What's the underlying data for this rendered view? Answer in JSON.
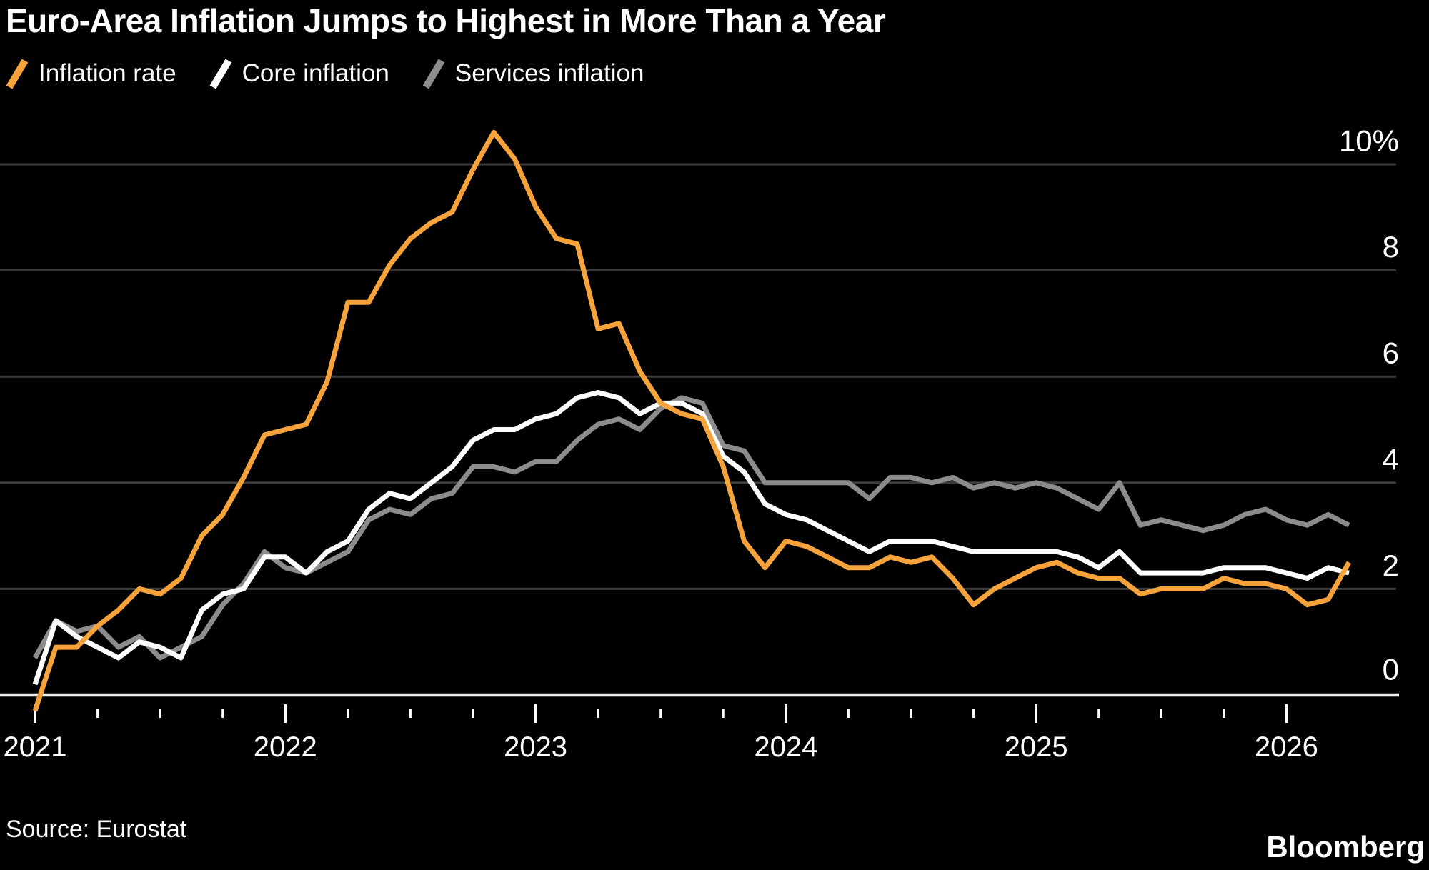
{
  "title": "Euro-Area Inflation Jumps to Highest in More Than a Year",
  "legend": [
    {
      "label": "Inflation rate",
      "color": "#f6a33c"
    },
    {
      "label": "Core inflation",
      "color": "#ffffff"
    },
    {
      "label": "Services inflation",
      "color": "#8c8c8c"
    }
  ],
  "source": "Source: Eurostat",
  "brand": "Bloomberg",
  "chart_data": {
    "type": "line",
    "title": "Euro-Area Inflation Jumps to Highest in More Than a Year",
    "x": [
      "2020-12",
      "2021-01",
      "2021-02",
      "2021-03",
      "2021-04",
      "2021-05",
      "2021-06",
      "2021-07",
      "2021-08",
      "2021-09",
      "2021-10",
      "2021-11",
      "2021-12",
      "2022-01",
      "2022-02",
      "2022-03",
      "2022-04",
      "2022-05",
      "2022-06",
      "2022-07",
      "2022-08",
      "2022-09",
      "2022-10",
      "2022-11",
      "2022-12",
      "2023-01",
      "2023-02",
      "2023-03",
      "2023-04",
      "2023-05",
      "2023-06",
      "2023-07",
      "2023-08",
      "2023-09",
      "2023-10",
      "2023-11",
      "2023-12",
      "2024-01",
      "2024-02",
      "2024-03",
      "2024-04",
      "2024-05",
      "2024-06",
      "2024-07",
      "2024-08",
      "2024-09",
      "2024-10",
      "2024-11",
      "2024-12",
      "2025-01",
      "2025-02",
      "2025-03",
      "2025-04",
      "2025-05",
      "2025-06",
      "2025-07",
      "2025-08",
      "2025-09",
      "2025-10",
      "2025-11",
      "2025-12",
      "2026-01",
      "2026-02",
      "2026-03"
    ],
    "series": [
      {
        "name": "Inflation rate",
        "color": "#f6a33c",
        "values": [
          -0.3,
          0.9,
          0.9,
          1.3,
          1.6,
          2.0,
          1.9,
          2.2,
          3.0,
          3.4,
          4.1,
          4.9,
          5.0,
          5.1,
          5.9,
          7.4,
          7.4,
          8.1,
          8.6,
          8.9,
          9.1,
          9.9,
          10.6,
          10.1,
          9.2,
          8.6,
          8.5,
          6.9,
          7.0,
          6.1,
          5.5,
          5.3,
          5.2,
          4.3,
          2.9,
          2.4,
          2.9,
          2.8,
          2.6,
          2.4,
          2.4,
          2.6,
          2.5,
          2.6,
          2.2,
          1.7,
          2.0,
          2.2,
          2.4,
          2.5,
          2.3,
          2.2,
          2.2,
          1.9,
          2.0,
          2.0,
          2.0,
          2.2,
          2.1,
          2.1,
          2.0,
          1.7,
          1.8,
          2.5
        ]
      },
      {
        "name": "Core inflation",
        "color": "#ffffff",
        "values": [
          0.2,
          1.4,
          1.1,
          0.9,
          0.7,
          1.0,
          0.9,
          0.7,
          1.6,
          1.9,
          2.0,
          2.6,
          2.6,
          2.3,
          2.7,
          2.9,
          3.5,
          3.8,
          3.7,
          4.0,
          4.3,
          4.8,
          5.0,
          5.0,
          5.2,
          5.3,
          5.6,
          5.7,
          5.6,
          5.3,
          5.5,
          5.5,
          5.3,
          4.5,
          4.2,
          3.6,
          3.4,
          3.3,
          3.1,
          2.9,
          2.7,
          2.9,
          2.9,
          2.9,
          2.8,
          2.7,
          2.7,
          2.7,
          2.7,
          2.7,
          2.6,
          2.4,
          2.7,
          2.3,
          2.3,
          2.3,
          2.3,
          2.4,
          2.4,
          2.4,
          2.3,
          2.2,
          2.4,
          2.3
        ]
      },
      {
        "name": "Services inflation",
        "color": "#8c8c8c",
        "values": [
          0.7,
          1.4,
          1.2,
          1.3,
          0.9,
          1.1,
          0.7,
          0.9,
          1.1,
          1.7,
          2.1,
          2.7,
          2.4,
          2.3,
          2.5,
          2.7,
          3.3,
          3.5,
          3.4,
          3.7,
          3.8,
          4.3,
          4.3,
          4.2,
          4.4,
          4.4,
          4.8,
          5.1,
          5.2,
          5.0,
          5.4,
          5.6,
          5.5,
          4.7,
          4.6,
          4.0,
          4.0,
          4.0,
          4.0,
          4.0,
          3.7,
          4.1,
          4.1,
          4.0,
          4.1,
          3.9,
          4.0,
          3.9,
          4.0,
          3.9,
          3.7,
          3.5,
          4.0,
          3.2,
          3.3,
          3.2,
          3.1,
          3.2,
          3.4,
          3.5,
          3.3,
          3.2,
          3.4,
          3.2
        ]
      }
    ],
    "ylim": [
      -0.5,
      11
    ],
    "yticks": [
      0,
      2,
      4,
      6,
      8,
      10
    ],
    "ytick_labels": [
      "0",
      "2",
      "4",
      "6",
      "8",
      "10%"
    ],
    "xticks_years": [
      "2021",
      "2022",
      "2023",
      "2024",
      "2025",
      "2026"
    ],
    "grid": "horizontal",
    "legend_position": "top-left",
    "colors": {
      "grid": "#3c3c3c",
      "axis": "#f0f0f0",
      "background": "#000000"
    }
  }
}
